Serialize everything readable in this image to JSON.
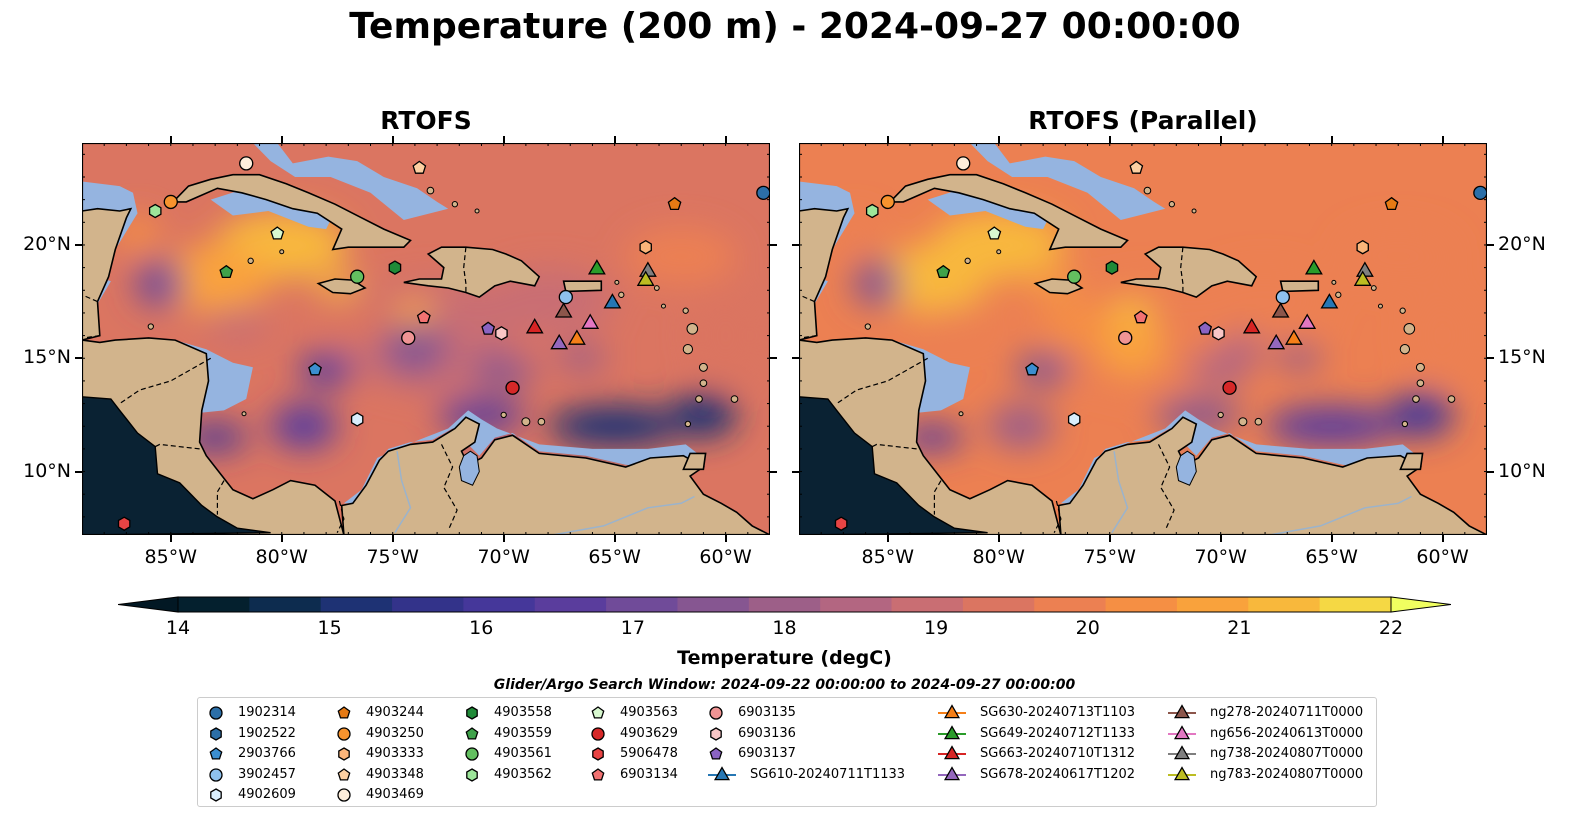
{
  "title": "Temperature (200 m) - 2024-09-27 00:00:00",
  "panels": [
    {
      "title": "RTOFS",
      "variant": "rtofs"
    },
    {
      "title": "RTOFS (Parallel)",
      "variant": "parallel"
    }
  ],
  "map": {
    "lon_range": [
      -89,
      -58
    ],
    "lat_range": [
      7.2,
      24.5
    ],
    "lon_ticks": [
      "85°W",
      "80°W",
      "75°W",
      "70°W",
      "65°W",
      "60°W"
    ],
    "lat_ticks": [
      "20°N",
      "15°N",
      "10°N"
    ],
    "colors": {
      "land": "#d2b48c",
      "shallow": "#95b4e0",
      "deep_pacific": "#0a2233",
      "coast": "#000000"
    }
  },
  "colorbar": {
    "label": "Temperature (degC)",
    "min": 14,
    "max": 22,
    "ticks": [
      "14",
      "15",
      "16",
      "17",
      "18",
      "19",
      "20",
      "21",
      "22"
    ],
    "colors": [
      "#04202e",
      "#0d2c4f",
      "#1e3274",
      "#33338a",
      "#45379a",
      "#5a3d9d",
      "#704b99",
      "#865691",
      "#9d5f88",
      "#b36681",
      "#c96e73",
      "#db7561",
      "#ec8052",
      "#f58f44",
      "#f9a23c",
      "#f8b83c",
      "#f5d844"
    ]
  },
  "search_window": "Glider/Argo Search Window: 2024-09-22 00:00:00 to 2024-09-27 00:00:00",
  "platforms": [
    {
      "id": "1902314",
      "marker": "circle",
      "color": "#2c6fa8",
      "lon": -58.3,
      "lat": 22.3
    },
    {
      "id": "1902522",
      "marker": "hexagon",
      "color": "#2c6fa8"
    },
    {
      "id": "2903766",
      "marker": "pentagon",
      "color": "#3b8ed0",
      "lon": -78.5,
      "lat": 14.5
    },
    {
      "id": "3902457",
      "marker": "circle",
      "color": "#8ec1ee",
      "lon": -67.2,
      "lat": 17.7
    },
    {
      "id": "4902609",
      "marker": "hexagon",
      "color": "#d9eefc",
      "lon": -76.6,
      "lat": 12.3
    },
    {
      "id": "4903244",
      "marker": "pentagon",
      "color": "#e67a14",
      "lon": -62.3,
      "lat": 21.8
    },
    {
      "id": "4903250",
      "marker": "circle",
      "color": "#f7932e",
      "lon": -85.0,
      "lat": 21.9
    },
    {
      "id": "4903333",
      "marker": "hexagon",
      "color": "#fbb57a",
      "lon": -63.6,
      "lat": 19.9
    },
    {
      "id": "4903348",
      "marker": "pentagon",
      "color": "#fdd0a2",
      "lon": -73.8,
      "lat": 23.4
    },
    {
      "id": "4903469",
      "marker": "circle",
      "color": "#feeedb",
      "lon": -81.6,
      "lat": 23.6
    },
    {
      "id": "4903558",
      "marker": "hexagon",
      "color": "#208a38",
      "lon": -74.9,
      "lat": 19.0
    },
    {
      "id": "4903559",
      "marker": "pentagon",
      "color": "#3fa24a",
      "lon": -82.5,
      "lat": 18.8
    },
    {
      "id": "4903561",
      "marker": "circle",
      "color": "#63bf60",
      "lon": -76.6,
      "lat": 18.6
    },
    {
      "id": "4903562",
      "marker": "hexagon",
      "color": "#9de69a",
      "lon": -85.7,
      "lat": 21.5
    },
    {
      "id": "4903563",
      "marker": "pentagon",
      "color": "#d8f8cf",
      "lon": -80.2,
      "lat": 20.5
    },
    {
      "id": "4903629",
      "marker": "circle",
      "color": "#d62828",
      "lon": -69.6,
      "lat": 13.7
    },
    {
      "id": "5906478",
      "marker": "hexagon",
      "color": "#e84444",
      "lon": -87.1,
      "lat": 7.7
    },
    {
      "id": "6903134",
      "marker": "pentagon",
      "color": "#f27272",
      "lon": -73.6,
      "lat": 16.8
    },
    {
      "id": "6903135",
      "marker": "circle",
      "color": "#f09494",
      "lon": -74.3,
      "lat": 15.9
    },
    {
      "id": "6903136",
      "marker": "hexagon",
      "color": "#f9c6c6",
      "lon": -70.1,
      "lat": 16.1
    },
    {
      "id": "6903137",
      "marker": "pentagon",
      "color": "#8a63c2",
      "lon": -70.7,
      "lat": 16.3
    },
    {
      "id": "SG610-20240711T1133",
      "marker": "triangle",
      "color": "#2677b4",
      "line": true,
      "lon": -65.1,
      "lat": 17.5
    },
    {
      "id": "SG630-20240713T1103",
      "marker": "triangle",
      "color": "#f57f18",
      "line": true,
      "lon": -66.7,
      "lat": 15.9
    },
    {
      "id": "SG649-20240712T1133",
      "marker": "triangle",
      "color": "#2a9c2a",
      "line": true,
      "lon": -65.8,
      "lat": 19.0
    },
    {
      "id": "SG663-20240710T1312",
      "marker": "triangle",
      "color": "#d72424",
      "line": true,
      "lon": -68.6,
      "lat": 16.4
    },
    {
      "id": "SG678-20240617T1202",
      "marker": "triangle",
      "color": "#9467bd",
      "line": true,
      "lon": -67.5,
      "lat": 15.7
    },
    {
      "id": "ng278-20240711T0000",
      "marker": "triangle",
      "color": "#8c564b",
      "line": true,
      "lon": -67.3,
      "lat": 17.1
    },
    {
      "id": "ng656-20240613T0000",
      "marker": "triangle",
      "color": "#e377c2",
      "line": true,
      "lon": -66.1,
      "lat": 16.6
    },
    {
      "id": "ng738-20240807T0000",
      "marker": "triangle",
      "color": "#7f7f7f",
      "line": true,
      "lon": -63.5,
      "lat": 18.9
    },
    {
      "id": "ng783-20240807T0000",
      "marker": "triangle",
      "color": "#bcbd22",
      "line": true,
      "lon": -63.6,
      "lat": 18.5
    }
  ]
}
